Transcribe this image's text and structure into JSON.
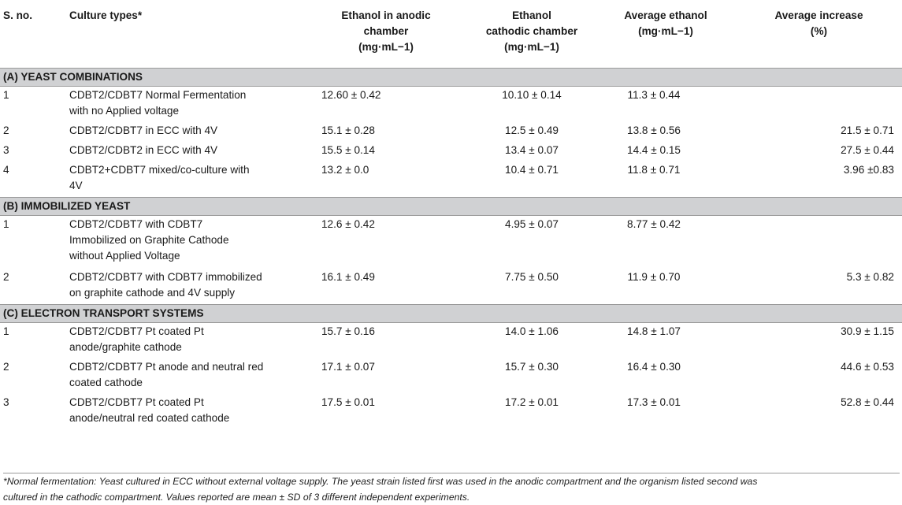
{
  "headers": {
    "sno": "S. no.",
    "culture": "Culture types*",
    "anodic_l1": "Ethanol in anodic",
    "anodic_l2": "chamber",
    "anodic_l3": "(mg·mL−1)",
    "cathodic_l1": "Ethanol",
    "cathodic_l2": "cathodic chamber",
    "cathodic_l3": "(mg·mL−1)",
    "average_l1": "Average ethanol",
    "average_l2": "(mg·mL−1)",
    "increase_l1": "Average increase",
    "increase_l2": "(%)"
  },
  "sections": [
    {
      "title": "(A) YEAST COMBINATIONS",
      "rows": [
        {
          "no": "1",
          "l1": "CDBT2/CDBT7 Normal Fermentation",
          "l2": "with no Applied voltage",
          "l3": "",
          "anodic": "12.60 ± 0.42",
          "cathodic": "10.10 ± 0.14",
          "average": "11.3 ± 0.44",
          "increase": ""
        },
        {
          "no": "2",
          "l1": "CDBT2/CDBT7 in ECC with 4V",
          "l2": "",
          "l3": "",
          "anodic": "15.1 ± 0.28",
          "cathodic": "12.5 ± 0.49",
          "average": "13.8 ± 0.56",
          "increase": "21.5 ± 0.71"
        },
        {
          "no": "3",
          "l1": "CDBT2/CDBT2 in ECC with 4V",
          "l2": "",
          "l3": "",
          "anodic": "15.5 ± 0.14",
          "cathodic": "13.4 ± 0.07",
          "average": "14.4 ± 0.15",
          "increase": "27.5 ± 0.44"
        },
        {
          "no": "4",
          "l1": "CDBT2+CDBT7 mixed/co-culture with",
          "l2": "4V",
          "l3": "",
          "anodic": "13.2 ± 0.0",
          "cathodic": "10.4 ± 0.71",
          "average": "11.8 ± 0.71",
          "increase": "3.96 ±0.83"
        }
      ]
    },
    {
      "title": "(B) IMMOBILIZED YEAST",
      "rows": [
        {
          "no": "1",
          "l1": "CDBT2/CDBT7 with CDBT7",
          "l2": "Immobilized on Graphite Cathode",
          "l3": "without Applied Voltage",
          "anodic": "12.6 ± 0.42",
          "cathodic": "4.95 ± 0.07",
          "average": "8.77 ± 0.42",
          "increase": ""
        },
        {
          "no": "2",
          "l1": "CDBT2/CDBT7 with CDBT7 immobilized",
          "l2": "on graphite cathode and 4V supply",
          "l3": "",
          "anodic": "16.1 ± 0.49",
          "cathodic": "7.75 ± 0.50",
          "average": "11.9 ± 0.70",
          "increase": "5.3 ± 0.82"
        }
      ]
    },
    {
      "title": "(C) ELECTRON TRANSPORT SYSTEMS",
      "rows": [
        {
          "no": "1",
          "l1": "CDBT2/CDBT7 Pt coated Pt",
          "l2": "anode/graphite cathode",
          "l3": "",
          "anodic": "15.7 ± 0.16",
          "cathodic": "14.0 ± 1.06",
          "average": "14.8 ± 1.07",
          "increase": "30.9 ± 1.15"
        },
        {
          "no": "2",
          "l1": "CDBT2/CDBT7 Pt anode and neutral red",
          "l2": "coated cathode",
          "l3": "",
          "anodic": "17.1 ± 0.07",
          "cathodic": "15.7 ± 0.30",
          "average": "16.4 ± 0.30",
          "increase": "44.6 ± 0.53"
        },
        {
          "no": "3",
          "l1": "CDBT2/CDBT7 Pt coated Pt",
          "l2": "anode/neutral red coated cathode",
          "l3": "",
          "anodic": "17.5 ± 0.01",
          "cathodic": "17.2 ± 0.01",
          "average": "17.3 ± 0.01",
          "increase": "52.8 ± 0.44"
        }
      ]
    }
  ],
  "footnote": {
    "line1": "*Normal fermentation: Yeast cultured in ECC without external voltage supply. The yeast strain listed first was used in the anodic compartment and the organism listed second was",
    "line2": "cultured in the cathodic compartment. Values reported are mean ± SD of 3 different independent experiments."
  }
}
